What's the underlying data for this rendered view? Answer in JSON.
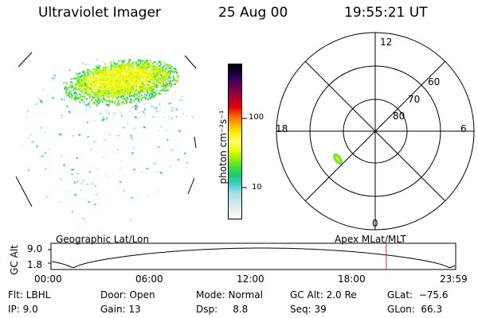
{
  "header": {
    "instrument": "Ultraviolet Imager",
    "date": "25 Aug 00",
    "time": "19:55:21 UT"
  },
  "colorbar": {
    "unit_label": "photon cm⁻²s⁻¹",
    "ticks": [
      "100",
      "10"
    ],
    "colors": [
      "#ffffff",
      "#e6f0f0",
      "#c8e8ec",
      "#9ee0ea",
      "#3fd2c8",
      "#1ec874",
      "#3ee03a",
      "#9af000",
      "#e6ff00",
      "#ffff70",
      "#fff000",
      "#ffb000",
      "#ff6000",
      "#e80000",
      "#b40030",
      "#7c0050",
      "#4a0060",
      "#18003a",
      "#000010"
    ]
  },
  "polar": {
    "mlt_labels": {
      "top": "12",
      "left": "18",
      "right": "6",
      "bottom": "0"
    },
    "lat_labels": [
      "60",
      "70",
      "80"
    ]
  },
  "timeline": {
    "left_label": "Geographic Lat/Lon",
    "right_label": "Apex MLat/MLT",
    "y_axis_label": "GC Alt",
    "y_ticks": [
      "9.0",
      "1.8"
    ],
    "x_ticks": [
      "00:00",
      "06:00",
      "12:00",
      "18:00",
      "23:59"
    ],
    "marker_color": "#c83232"
  },
  "info": {
    "flt": "Flt: LBHL",
    "ip": "IP:  9.0",
    "door": "Door: Open",
    "gain": "Gain: 13",
    "mode": "Mode: Normal",
    "dsp": "Dsp:     8.8",
    "gcalt": "GC Alt: 2.0 Re",
    "seq": "Seq: 39",
    "glat": "GLat:  −75.6",
    "glon": "GLon:  66.3"
  }
}
